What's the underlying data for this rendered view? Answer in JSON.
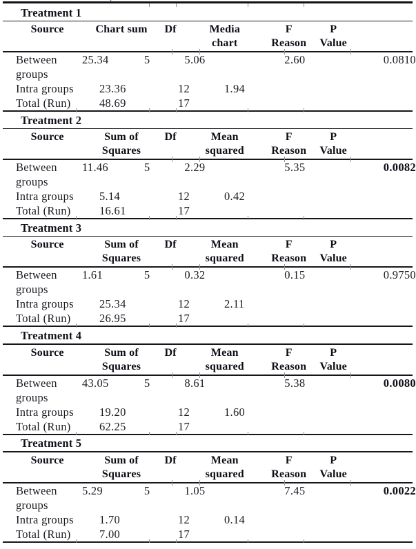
{
  "page": {
    "cropped_text_fragment": "y",
    "colors": {
      "text": "#1a1a22",
      "rule": "#16161a",
      "tick": "#90909a",
      "background": "#ffffff"
    }
  },
  "chart_data": {
    "type": "table",
    "note": "Five one-way ANOVA summary tables, Treatment 1-5",
    "df": {
      "between": 5,
      "intra": 12,
      "total": 17
    }
  },
  "tables": [
    {
      "title": "Treatment 1",
      "header": {
        "source": "Source",
        "sum_l1": "Chart sum",
        "sum_l2": "",
        "df": "Df",
        "mean_l1": "Media",
        "mean_l2": "chart",
        "f_l1": "F",
        "f_l2": "Reason",
        "p_l1": "P",
        "p_l2": "Value"
      },
      "between": {
        "label_l1": "Between",
        "label_l2": "groups",
        "sum": "25.34",
        "df": "5",
        "mean": "5.06",
        "f": "2.60",
        "p": "0.0810",
        "p_class": ""
      },
      "intra": {
        "label": "Intra groups",
        "sum": "23.36",
        "df": "12",
        "mean": "1.94"
      },
      "total": {
        "label": "Total (Run)",
        "sum": "48.69",
        "df": "17"
      }
    },
    {
      "title": "Treatment 2",
      "header": {
        "source": "Source",
        "sum_l1": "Sum of",
        "sum_l2": "Squares",
        "df": "Df",
        "mean_l1": "Mean",
        "mean_l2": "squared",
        "f_l1": "F",
        "f_l2": "Reason",
        "p_l1": "P",
        "p_l2": "Value"
      },
      "between": {
        "label_l1": "Between",
        "label_l2": "groups",
        "sum": "11.46",
        "df": "5",
        "mean": "2.29",
        "f": "5.35",
        "p": "0.0082",
        "p_class": "b"
      },
      "intra": {
        "label": "Intra groups",
        "sum": "5.14",
        "df": "12",
        "mean": "0.42"
      },
      "total": {
        "label": "Total (Run)",
        "sum": "16.61",
        "df": "17"
      }
    },
    {
      "title": "Treatment 3",
      "header": {
        "source": "Source",
        "sum_l1": "Sum of",
        "sum_l2": "Squares",
        "df": "Df",
        "mean_l1": "Mean",
        "mean_l2": "squared",
        "f_l1": "F",
        "f_l2": "Reason",
        "p_l1": "P",
        "p_l2": "Value"
      },
      "between": {
        "label_l1": "Between",
        "label_l2": "groups",
        "sum": "1.61",
        "df": "5",
        "mean": "0.32",
        "f": "0.15",
        "p": "0.9750",
        "p_class": ""
      },
      "intra": {
        "label": "Intra groups",
        "sum": "25.34",
        "df": "12",
        "mean": "2.11"
      },
      "total": {
        "label": "Total (Run)",
        "sum": "26.95",
        "df": "17"
      }
    },
    {
      "title": "Treatment 4",
      "header": {
        "source": "Source",
        "sum_l1": "Sum of",
        "sum_l2": "Squares",
        "df": "Df",
        "mean_l1": "Mean",
        "mean_l2": "squared",
        "f_l1": "F",
        "f_l2": "Reason",
        "p_l1": "P",
        "p_l2": "Value"
      },
      "between": {
        "label_l1": "Between",
        "label_l2": "groups",
        "sum": "43.05",
        "df": "5",
        "mean": "8.61",
        "f": "5.38",
        "p": "0.0080",
        "p_class": "b"
      },
      "intra": {
        "label": "Intra groups",
        "sum": "19.20",
        "df": "12",
        "mean": "1.60"
      },
      "total": {
        "label": "Total (Run)",
        "sum": "62.25",
        "df": "17"
      }
    },
    {
      "title": "Treatment 5",
      "header": {
        "source": "Source",
        "sum_l1": "Sum of",
        "sum_l2": "Squares",
        "df": "Df",
        "mean_l1": "Mean",
        "mean_l2": "squared",
        "f_l1": "F",
        "f_l2": "Reason",
        "p_l1": "P",
        "p_l2": "Value"
      },
      "between": {
        "label_l1": "Between",
        "label_l2": "groups",
        "sum": "5.29",
        "df": "5",
        "mean": "1.05",
        "f": "7.45",
        "p": "0.0022",
        "p_class": "b"
      },
      "intra": {
        "label": "Intra groups",
        "sum": "1.70",
        "df": "12",
        "mean": "0.14"
      },
      "total": {
        "label": "Total (Run)",
        "sum": "7.00",
        "df": "17"
      }
    }
  ]
}
